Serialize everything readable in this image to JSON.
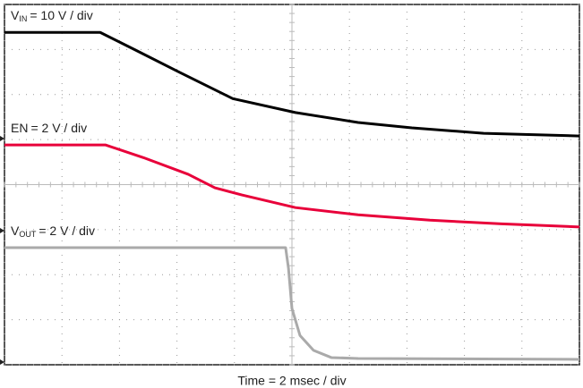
{
  "chart_data": {
    "type": "line",
    "x_label": "Time = 2 msec / div",
    "xlim": [
      0,
      20
    ],
    "ylim": [
      0,
      8
    ],
    "xticks": [
      0,
      2,
      4,
      6,
      8,
      10,
      12,
      14,
      16,
      18,
      20
    ],
    "yticks": [
      0,
      1,
      2,
      3,
      4,
      5,
      6,
      7,
      8
    ],
    "grid": true,
    "series": [
      {
        "name": "V",
        "name_sub": "IN",
        "scale": "= 10 V / div",
        "color": "#000000",
        "x": [
          0,
          3.33,
          4.52,
          6.07,
          7.94,
          10.12,
          12.3,
          14.17,
          16.67,
          20
        ],
        "values": [
          7.38,
          7.38,
          7.0,
          6.5,
          5.91,
          5.6,
          5.38,
          5.26,
          5.14,
          5.08
        ]
      },
      {
        "name": "EN",
        "scale": "= 2 V / div",
        "color": "#e8003a",
        "x": [
          0,
          3.52,
          4.83,
          6.39,
          7.32,
          8.26,
          10.12,
          12.3,
          14.8,
          17.29,
          20
        ],
        "values": [
          4.88,
          4.88,
          4.6,
          4.23,
          3.93,
          3.77,
          3.49,
          3.33,
          3.21,
          3.13,
          3.06
        ]
      },
      {
        "name": "V",
        "name_sub": "OUT",
        "scale": "= 2 V / div",
        "color": "#aaaaaa",
        "x": [
          0,
          9.78,
          9.88,
          10.0,
          10.28,
          10.75,
          11.37,
          12.3,
          20
        ],
        "values": [
          2.6,
          2.6,
          2.14,
          1.25,
          0.65,
          0.32,
          0.16,
          0.14,
          0.12
        ]
      }
    ]
  }
}
